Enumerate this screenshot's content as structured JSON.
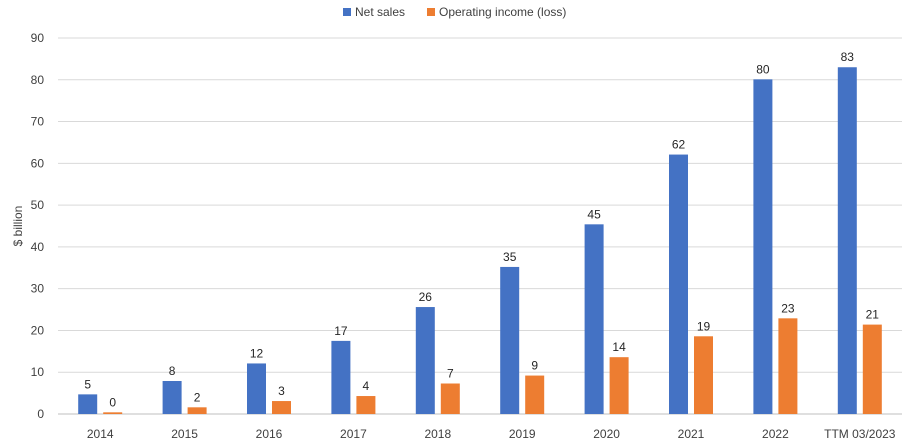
{
  "chart_data": {
    "type": "bar",
    "title": "",
    "xlabel": "",
    "ylabel": "$ billion",
    "ylim": [
      0,
      90
    ],
    "yticks": [
      0,
      10,
      20,
      30,
      40,
      50,
      60,
      70,
      80,
      90
    ],
    "grid": true,
    "legend_position": "top",
    "categories": [
      "2014",
      "2015",
      "2016",
      "2017",
      "2018",
      "2019",
      "2020",
      "2021",
      "2022",
      "TTM 03/2023"
    ],
    "series": [
      {
        "name": "Net sales",
        "color": "#4472C4",
        "values": [
          4.7,
          7.9,
          12.1,
          17.5,
          25.6,
          35.2,
          45.4,
          62.1,
          80.1,
          83.0
        ],
        "labels": [
          "5",
          "8",
          "12",
          "17",
          "26",
          "35",
          "45",
          "62",
          "80",
          "83"
        ]
      },
      {
        "name": "Operating income (loss)",
        "color": "#ED7D31",
        "values": [
          0.4,
          1.6,
          3.1,
          4.3,
          7.3,
          9.2,
          13.6,
          18.6,
          22.9,
          21.4
        ],
        "labels": [
          "0",
          "2",
          "3",
          "4",
          "7",
          "9",
          "14",
          "19",
          "23",
          "21"
        ]
      }
    ]
  }
}
